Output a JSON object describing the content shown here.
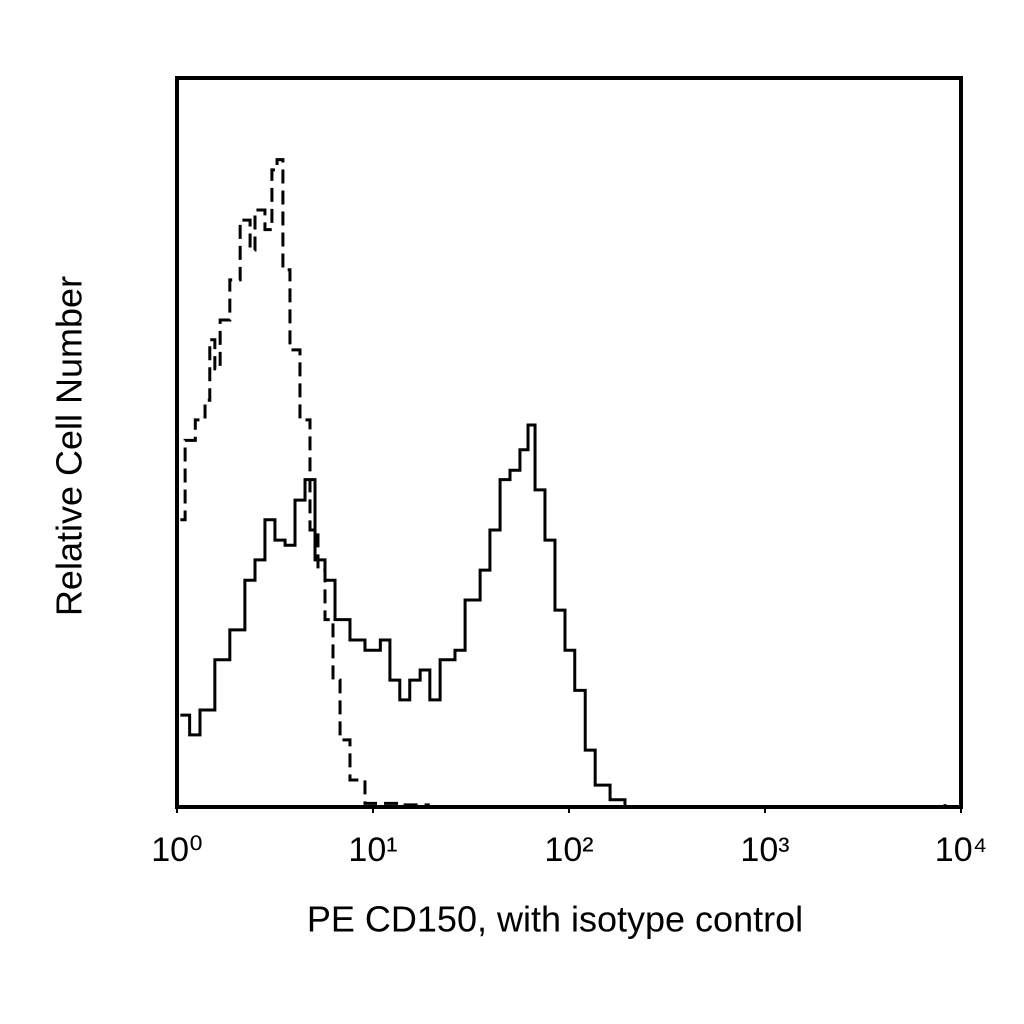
{
  "chart_data": {
    "type": "line",
    "x_label": "PE CD150, with isotype control",
    "y_label": "Relative Cell Number",
    "xscale": "log",
    "xlim": [
      1,
      10000
    ],
    "xticks": [
      {
        "value": 1,
        "label": "10⁰"
      },
      {
        "value": 10,
        "label": "10¹"
      },
      {
        "value": 100,
        "label": "10²"
      },
      {
        "value": 1000,
        "label": "10³"
      },
      {
        "value": 10000,
        "label": "10⁴"
      }
    ],
    "ylim": [
      0,
      100
    ],
    "series": [
      {
        "color": "#000000",
        "dash": "dashed",
        "x": [
          1.04,
          1.1,
          1.24,
          1.39,
          1.47,
          1.56,
          1.66,
          1.86,
          2.1,
          2.36,
          2.5,
          2.81,
          3.05,
          3.24,
          3.47,
          3.77,
          4.24,
          4.77,
          5.24,
          5.69,
          6.25,
          6.79,
          7.63,
          9.1,
          13.7,
          19.5
        ],
        "values": [
          39.4,
          50.3,
          53.1,
          55.8,
          64.1,
          60.1,
          66.8,
          72.3,
          80.5,
          76.4,
          81.9,
          79.2,
          87.4,
          88.8,
          73.7,
          62.7,
          53.1,
          38.0,
          32.5,
          25.7,
          17.4,
          9.2,
          3.7,
          0.5,
          0.3,
          0.3
        ]
      },
      {
        "color": "#000000",
        "dash": "solid",
        "x": [
          1.04,
          1.16,
          1.31,
          1.56,
          1.86,
          2.22,
          2.5,
          2.81,
          3.16,
          3.56,
          4.0,
          4.5,
          5.06,
          5.69,
          6.4,
          7.63,
          9.1,
          10.9,
          12.2,
          13.7,
          15.4,
          17.4,
          19.5,
          22.0,
          26.2,
          29.5,
          35.2,
          39.5,
          44.5,
          50.0,
          56.2,
          61.8,
          67.1,
          75.4,
          84.8,
          95.4,
          107,
          121,
          136,
          162,
          193,
          466,
          8280
        ],
        "values": [
          12.6,
          9.9,
          13.3,
          20.2,
          24.3,
          31.1,
          33.9,
          39.4,
          36.6,
          35.9,
          42.1,
          44.9,
          33.9,
          31.1,
          25.7,
          22.9,
          21.5,
          22.9,
          17.4,
          14.7,
          17.4,
          18.8,
          14.7,
          20.2,
          21.5,
          28.4,
          32.5,
          38.0,
          44.9,
          46.2,
          49.0,
          52.4,
          43.5,
          36.6,
          27.0,
          21.5,
          16.0,
          7.8,
          3.0,
          1.0,
          0,
          0,
          0.4
        ]
      }
    ]
  }
}
